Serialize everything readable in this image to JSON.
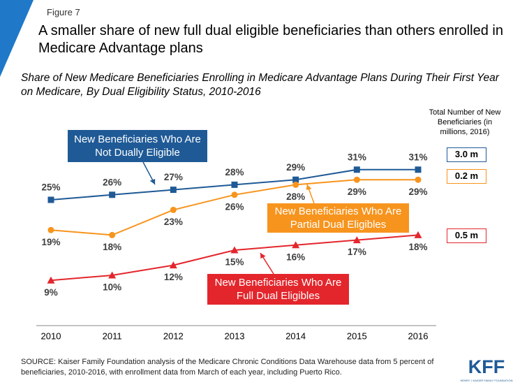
{
  "figure_label": "Figure 7",
  "chart_data": {
    "type": "line",
    "title": "A smaller share of new full dual eligible beneficiaries than others enrolled in Medicare Advantage plans",
    "subtitle": "Share of New Medicare Beneficiaries Enrolling in Medicare Advantage Plans During Their First Year on Medicare, By Dual Eligibility Status, 2010-2016",
    "categories": [
      "2010",
      "2011",
      "2012",
      "2013",
      "2014",
      "2015",
      "2016"
    ],
    "ylim": [
      0,
      35
    ],
    "totals_title": "Total Number of New Beneficiaries (in millions, 2016)",
    "series": [
      {
        "name": "New Beneficiaries Who Are Not Dually Eligible",
        "color": "#1f5a96",
        "marker": "square",
        "values": [
          25,
          26,
          27,
          28,
          29,
          31,
          31
        ],
        "value_labels": [
          "25%",
          "26%",
          "27%",
          "28%",
          "29%",
          "31%",
          "31%"
        ],
        "total": "3.0 m"
      },
      {
        "name": "New Beneficiaries Who Are Partial Dual Eligibles",
        "color": "#f7941d",
        "marker": "circle",
        "values": [
          19,
          18,
          23,
          26,
          28,
          29,
          29
        ],
        "value_labels": [
          "19%",
          "18%",
          "23%",
          "26%",
          "28%",
          "29%",
          "29%"
        ],
        "total": "0.2 m"
      },
      {
        "name": "New Beneficiaries Who Are Full Dual Eligibles",
        "color": "#e3262c",
        "marker": "triangle",
        "values": [
          9,
          10,
          12,
          15,
          16,
          17,
          18
        ],
        "value_labels": [
          "9%",
          "10%",
          "12%",
          "15%",
          "16%",
          "17%",
          "18%"
        ],
        "total": "0.5 m"
      }
    ]
  },
  "source": "SOURCE: Kaiser Family Foundation analysis of the Medicare Chronic Conditions Data Warehouse data from 5 percent of beneficiaries, 2010-2016, with enrollment data from March of each year, including Puerto Rico.",
  "logo": {
    "name": "KFF",
    "tagline": "HENRY J KAISER FAMILY FOUNDATION"
  }
}
